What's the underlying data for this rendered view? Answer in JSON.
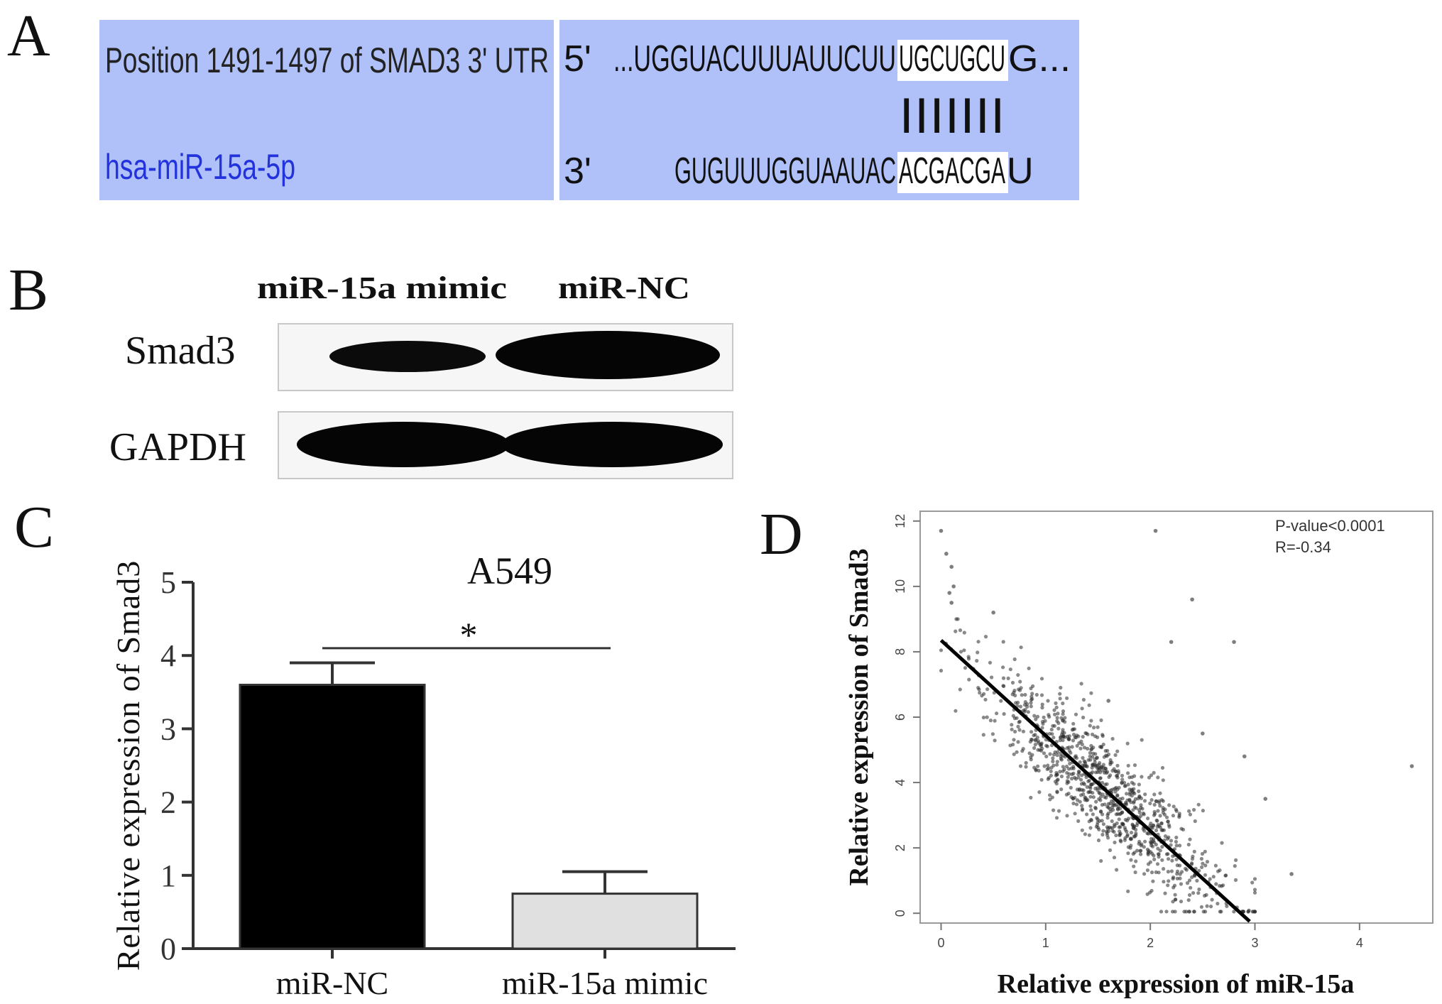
{
  "panels": {
    "a": "A",
    "b": "B",
    "c": "C",
    "d": "D"
  },
  "alignment": {
    "position_label": "Position 1491-1497 of SMAD3 3' UTR",
    "mirna_label": "hsa-miR-15a-5p",
    "utr_prime": "5'",
    "utr_sequence_prefix": "...UGGUACUUUAUUCUU",
    "utr_seed": "UGCUGCU",
    "utr_suffix": "G...",
    "pairing": "|||||||",
    "mirna_prime": "3'",
    "mirna_sequence_prefix": "GUGUUUGGUAAUAC",
    "mirna_seed": "ACGACGA",
    "mirna_suffix": "U",
    "panel_color": "#b0c0f8"
  },
  "western": {
    "lane_labels": [
      "miR-15a mimic",
      "miR-NC"
    ],
    "row_labels": [
      "Smad3",
      "GAPDH"
    ]
  },
  "chart_data": [
    {
      "type": "bar",
      "title": "A549",
      "ylabel": "Relative expression of Smad3",
      "categories": [
        "miR-NC",
        "miR-15a mimic"
      ],
      "values": [
        3.6,
        0.75
      ],
      "errors": [
        0.3,
        0.3
      ],
      "colors": [
        "#000000",
        "#e0e0e0"
      ],
      "ylim": [
        0,
        5
      ],
      "yticks": [
        0,
        1,
        2,
        3,
        4,
        5
      ],
      "significance": "*"
    },
    {
      "type": "scatter",
      "xlabel": "Relative expression of miR-15a",
      "ylabel": "Relative expression of Smad3",
      "xlim": [
        -0.2,
        4.7
      ],
      "ylim": [
        -0.3,
        12.3
      ],
      "xticks": [
        0,
        1,
        2,
        3,
        4
      ],
      "yticks": [
        0,
        2,
        4,
        6,
        8,
        10,
        12
      ],
      "stats": [
        "P-value<0.0001",
        "R=-0.34"
      ],
      "regression_line": {
        "x": [
          0,
          2.95
        ],
        "y": [
          8.35,
          -0.25
        ]
      },
      "n_points": 1000,
      "outliers": [
        {
          "x": 0.0,
          "y": 11.7
        },
        {
          "x": 0.05,
          "y": 11.0
        },
        {
          "x": 0.1,
          "y": 10.6
        },
        {
          "x": 0.08,
          "y": 9.8
        },
        {
          "x": 0.12,
          "y": 10.0
        },
        {
          "x": 0.1,
          "y": 9.5
        },
        {
          "x": 2.05,
          "y": 11.7
        },
        {
          "x": 2.4,
          "y": 9.6
        },
        {
          "x": 2.2,
          "y": 8.3
        },
        {
          "x": 2.8,
          "y": 8.3
        },
        {
          "x": 0.5,
          "y": 9.2
        },
        {
          "x": 4.5,
          "y": 4.5
        },
        {
          "x": 3.1,
          "y": 3.5
        },
        {
          "x": 3.35,
          "y": 1.2
        },
        {
          "x": 2.9,
          "y": 4.8
        },
        {
          "x": 1.6,
          "y": 6.5
        },
        {
          "x": 2.5,
          "y": 5.5
        }
      ]
    }
  ]
}
